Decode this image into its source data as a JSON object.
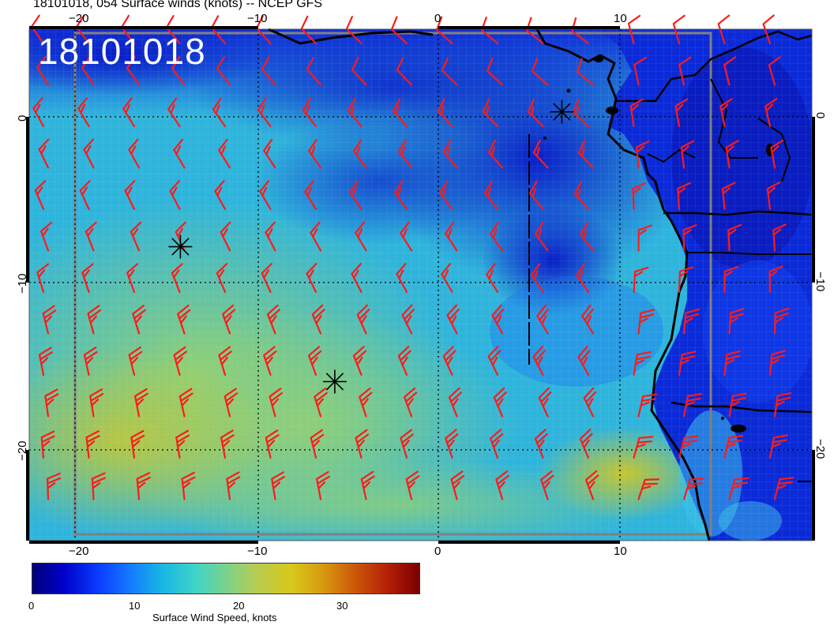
{
  "title": "18101018, 054 Surface winds (knots) -- NCEP GFS",
  "stamp": "18101018",
  "colors": {
    "barb": "#ff1a1a",
    "coast": "#000000",
    "frame": "#808080",
    "colorbar": [
      "#00007a",
      "#0000c8",
      "#0a3cff",
      "#1478ff",
      "#16b4e6",
      "#3ed4c8",
      "#7ad28c",
      "#b8cc50",
      "#d8c81a",
      "#d89a10",
      "#cc5a08",
      "#b41e06",
      "#7a0000"
    ]
  },
  "axes": {
    "x_ticks": [
      "−20",
      "−10",
      "0",
      "10"
    ],
    "y_ticks": [
      "0",
      "−10",
      "−20"
    ]
  },
  "colorbar": {
    "ticks": [
      "0",
      "10",
      "20",
      "30"
    ],
    "label": "Surface Wind Speed, knots"
  },
  "markers": [
    {
      "name": "marker-east",
      "lon": 6.8,
      "lat": 0.3
    },
    {
      "name": "marker-west",
      "lon": -14.2,
      "lat": -7.8
    },
    {
      "name": "marker-south",
      "lon": -5.7,
      "lat": -15.9
    }
  ]
}
